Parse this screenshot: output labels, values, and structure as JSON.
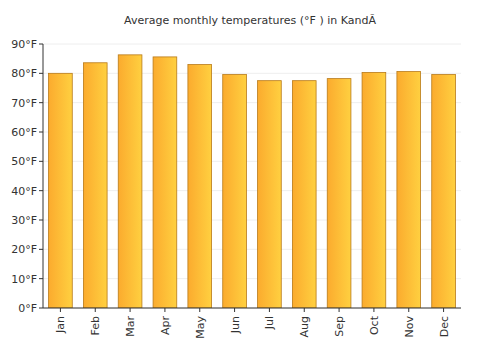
{
  "chart_data": {
    "type": "bar",
    "title": "Average monthly temperatures (°F ) in KandÃ",
    "categories": [
      "Jan",
      "Feb",
      "Mar",
      "Apr",
      "May",
      "Jun",
      "Jul",
      "Aug",
      "Sep",
      "Oct",
      "Nov",
      "Dec"
    ],
    "values": [
      80,
      83.6,
      86.3,
      85.6,
      83,
      79.6,
      77.5,
      77.5,
      78.2,
      80.3,
      80.6,
      79.6
    ],
    "color": "#fbab2e",
    "ylim": [
      0,
      90
    ],
    "yticks": [
      {
        "value": 0,
        "label": "0°F"
      },
      {
        "value": 10,
        "label": "10°F"
      },
      {
        "value": 20,
        "label": "20°F"
      },
      {
        "value": 30,
        "label": "30°F"
      },
      {
        "value": 40,
        "label": "40°F"
      },
      {
        "value": 50,
        "label": "50°F"
      },
      {
        "value": 60,
        "label": "60°F"
      },
      {
        "value": 70,
        "label": "70°F"
      },
      {
        "value": 80,
        "label": "80°F"
      },
      {
        "value": 90,
        "label": "90°F"
      }
    ],
    "grid": true
  }
}
